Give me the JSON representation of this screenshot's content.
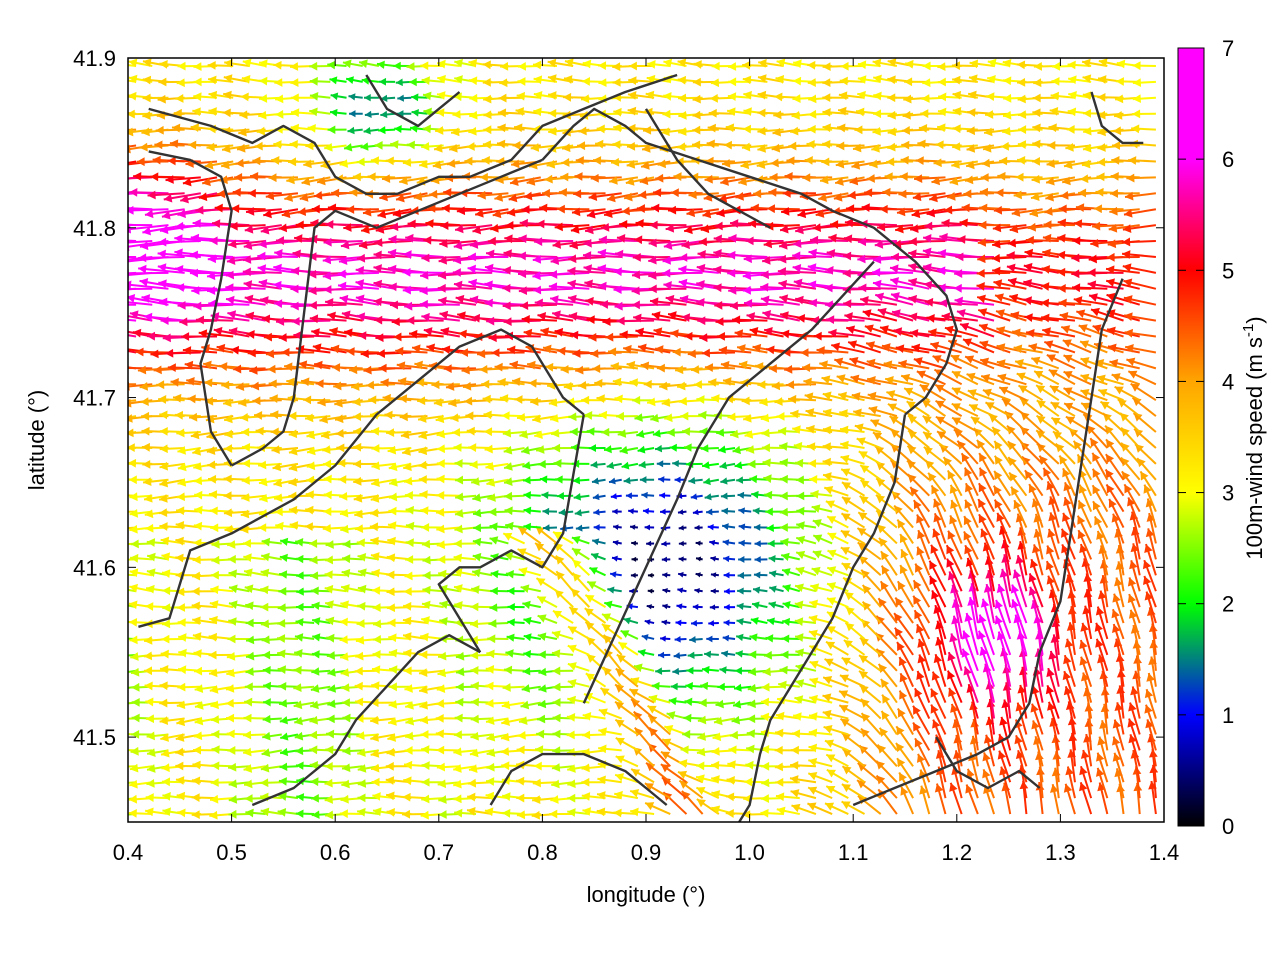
{
  "chart_data": {
    "type": "vector-field",
    "xlabel": "longitude (°)",
    "ylabel": "latitude (°)",
    "xlim": [
      0.4,
      1.4
    ],
    "ylim": [
      41.45,
      41.9
    ],
    "x_ticks": [
      "0.4",
      "0.5",
      "0.6",
      "0.7",
      "0.8",
      "0.9",
      "1.0",
      "1.1",
      "1.2",
      "1.3",
      "1.4"
    ],
    "y_ticks": [
      "41.5",
      "41.6",
      "41.7",
      "41.8",
      "41.9"
    ],
    "x_tick_values": [
      0.4,
      0.5,
      0.6,
      0.7,
      0.8,
      0.9,
      1.0,
      1.1,
      1.2,
      1.3,
      1.4
    ],
    "y_tick_values": [
      41.5,
      41.6,
      41.7,
      41.8,
      41.9
    ],
    "colorbar": {
      "label_text": "100m-wind speed (m s",
      "label_superscript": "-1",
      "label_close": ")",
      "range": [
        0,
        7
      ],
      "ticks": [
        "0",
        "1",
        "2",
        "3",
        "4",
        "5",
        "6",
        "7"
      ],
      "tick_values": [
        0,
        1,
        2,
        3,
        4,
        5,
        6,
        7
      ],
      "palette": [
        "#000000",
        "#0000ff",
        "#00ff00",
        "#ffff00",
        "#ffa500",
        "#ff0000",
        "#ff00ff"
      ]
    },
    "contour_color": "#333333",
    "contour_lines": [
      [
        [
          0.41,
          41.565
        ],
        [
          0.44,
          41.57
        ],
        [
          0.46,
          41.61
        ],
        [
          0.5,
          41.62
        ],
        [
          0.56,
          41.64
        ],
        [
          0.6,
          41.66
        ],
        [
          0.64,
          41.69
        ],
        [
          0.68,
          41.71
        ],
        [
          0.72,
          41.73
        ],
        [
          0.76,
          41.74
        ],
        [
          0.79,
          41.73
        ],
        [
          0.82,
          41.7
        ],
        [
          0.84,
          41.69
        ]
      ],
      [
        [
          0.84,
          41.69
        ],
        [
          0.82,
          41.62
        ],
        [
          0.8,
          41.6
        ],
        [
          0.77,
          41.61
        ],
        [
          0.74,
          41.6
        ],
        [
          0.72,
          41.6
        ],
        [
          0.7,
          41.59
        ],
        [
          0.72,
          41.57
        ],
        [
          0.74,
          41.55
        ]
      ],
      [
        [
          0.74,
          41.55
        ],
        [
          0.71,
          41.56
        ],
        [
          0.68,
          41.55
        ],
        [
          0.65,
          41.53
        ],
        [
          0.62,
          41.51
        ],
        [
          0.6,
          41.49
        ],
        [
          0.56,
          41.47
        ],
        [
          0.52,
          41.46
        ]
      ],
      [
        [
          0.42,
          41.87
        ],
        [
          0.48,
          41.86
        ],
        [
          0.52,
          41.85
        ],
        [
          0.55,
          41.86
        ],
        [
          0.58,
          41.85
        ],
        [
          0.6,
          41.83
        ],
        [
          0.63,
          41.82
        ],
        [
          0.66,
          41.82
        ],
        [
          0.7,
          41.83
        ],
        [
          0.73,
          41.83
        ],
        [
          0.77,
          41.84
        ],
        [
          0.8,
          41.86
        ],
        [
          0.84,
          41.87
        ],
        [
          0.88,
          41.88
        ],
        [
          0.93,
          41.89
        ]
      ],
      [
        [
          0.42,
          41.845
        ],
        [
          0.46,
          41.84
        ],
        [
          0.49,
          41.83
        ],
        [
          0.5,
          41.81
        ],
        [
          0.49,
          41.77
        ],
        [
          0.48,
          41.74
        ],
        [
          0.47,
          41.72
        ],
        [
          0.48,
          41.68
        ],
        [
          0.5,
          41.66
        ]
      ],
      [
        [
          0.5,
          41.66
        ],
        [
          0.53,
          41.67
        ],
        [
          0.55,
          41.68
        ],
        [
          0.56,
          41.7
        ],
        [
          0.57,
          41.75
        ],
        [
          0.58,
          41.8
        ],
        [
          0.6,
          41.81
        ],
        [
          0.64,
          41.8
        ],
        [
          0.68,
          41.81
        ],
        [
          0.72,
          41.82
        ],
        [
          0.76,
          41.83
        ],
        [
          0.8,
          41.84
        ]
      ],
      [
        [
          0.8,
          41.84
        ],
        [
          0.83,
          41.86
        ],
        [
          0.85,
          41.87
        ],
        [
          0.88,
          41.86
        ],
        [
          0.9,
          41.85
        ],
        [
          0.95,
          41.84
        ],
        [
          1.0,
          41.83
        ],
        [
          1.05,
          41.82
        ],
        [
          1.08,
          41.81
        ],
        [
          1.12,
          41.8
        ],
        [
          1.16,
          41.78
        ],
        [
          1.19,
          41.76
        ],
        [
          1.2,
          41.74
        ],
        [
          1.19,
          41.72
        ],
        [
          1.17,
          41.7
        ],
        [
          1.15,
          41.69
        ]
      ],
      [
        [
          1.15,
          41.69
        ],
        [
          1.14,
          41.65
        ],
        [
          1.12,
          41.62
        ],
        [
          1.1,
          41.6
        ],
        [
          1.08,
          41.57
        ],
        [
          1.06,
          41.55
        ],
        [
          1.04,
          41.53
        ],
        [
          1.02,
          41.51
        ],
        [
          1.01,
          41.49
        ],
        [
          1.0,
          41.46
        ],
        [
          0.99,
          41.45
        ]
      ],
      [
        [
          0.75,
          41.46
        ],
        [
          0.77,
          41.48
        ],
        [
          0.8,
          41.49
        ],
        [
          0.84,
          41.49
        ],
        [
          0.88,
          41.48
        ],
        [
          0.9,
          41.47
        ],
        [
          0.92,
          41.46
        ]
      ],
      [
        [
          0.84,
          41.52
        ],
        [
          0.87,
          41.56
        ],
        [
          0.9,
          41.6
        ],
        [
          0.93,
          41.64
        ],
        [
          0.95,
          41.67
        ],
        [
          0.98,
          41.7
        ],
        [
          1.02,
          41.72
        ],
        [
          1.06,
          41.74
        ],
        [
          1.09,
          41.76
        ],
        [
          1.12,
          41.78
        ]
      ],
      [
        [
          0.9,
          41.87
        ],
        [
          0.93,
          41.84
        ],
        [
          0.96,
          41.82
        ],
        [
          0.99,
          41.81
        ],
        [
          1.02,
          41.8
        ]
      ],
      [
        [
          1.1,
          41.46
        ],
        [
          1.14,
          41.47
        ],
        [
          1.18,
          41.48
        ],
        [
          1.22,
          41.49
        ],
        [
          1.25,
          41.5
        ],
        [
          1.27,
          41.52
        ],
        [
          1.28,
          41.55
        ],
        [
          1.3,
          41.58
        ],
        [
          1.31,
          41.62
        ],
        [
          1.32,
          41.66
        ],
        [
          1.33,
          41.7
        ],
        [
          1.34,
          41.74
        ],
        [
          1.36,
          41.77
        ]
      ],
      [
        [
          1.33,
          41.88
        ],
        [
          1.34,
          41.86
        ],
        [
          1.36,
          41.85
        ],
        [
          1.38,
          41.85
        ]
      ],
      [
        [
          1.18,
          41.5
        ],
        [
          1.2,
          41.48
        ],
        [
          1.23,
          41.47
        ],
        [
          1.26,
          41.48
        ],
        [
          1.28,
          41.47
        ]
      ],
      [
        [
          0.63,
          41.89
        ],
        [
          0.65,
          41.87
        ],
        [
          0.68,
          41.86
        ],
        [
          0.7,
          41.87
        ],
        [
          0.72,
          41.88
        ]
      ]
    ]
  }
}
